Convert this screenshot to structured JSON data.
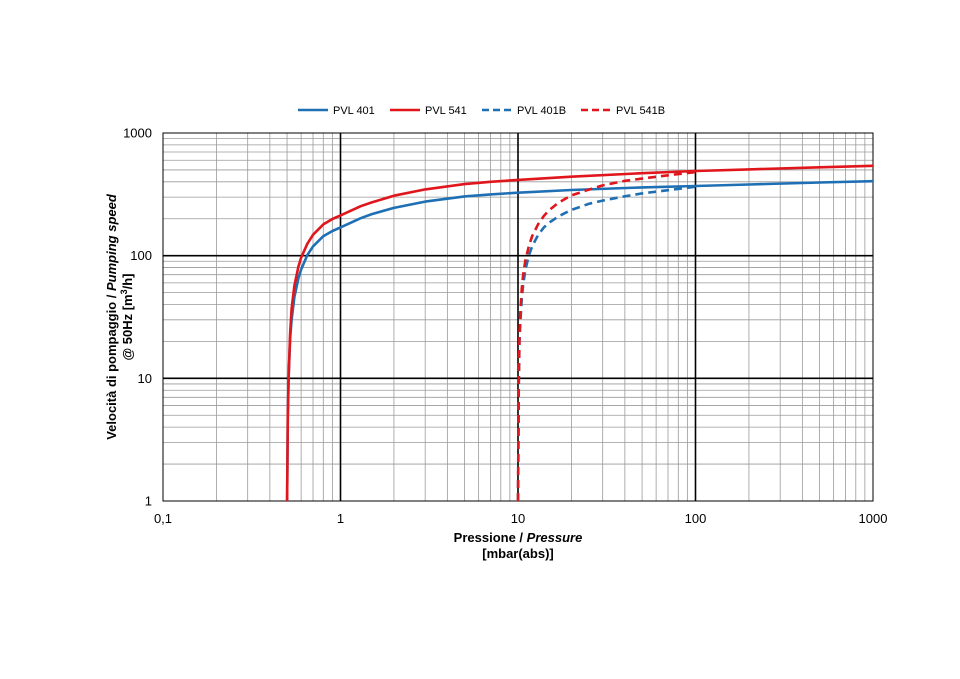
{
  "chart_data": {
    "type": "line",
    "x_scale": "log",
    "y_scale": "log",
    "xlim": [
      0.1,
      1000
    ],
    "ylim": [
      1,
      1000
    ],
    "grid": "on (major and minor)",
    "legend_position": "top",
    "x_ticks": [
      "0,1",
      "1",
      "10",
      "100",
      "1000"
    ],
    "y_ticks": [
      "1",
      "10",
      "100",
      "1000"
    ],
    "xlabel": {
      "line1_plain": "Pressione / ",
      "line1_italic": "Pressure",
      "line2": "[mbar(abs)]"
    },
    "ylabel": {
      "line1_plain": "Velocità di pompaggio / ",
      "line1_italic": "Pumping speed",
      "line2_prefix": "@ 50Hz [m",
      "line2_sup": "3",
      "line2_suffix": "/h]"
    },
    "series": [
      {
        "name": "PVL 401",
        "color": "#1f6fb4",
        "dash": "solid",
        "x": [
          0.5,
          0.505,
          0.51,
          0.52,
          0.53,
          0.55,
          0.58,
          0.6,
          0.65,
          0.7,
          0.8,
          0.9,
          1,
          1.3,
          1.5,
          2,
          3,
          5,
          7,
          10,
          20,
          50,
          100,
          200,
          500,
          1000
        ],
        "y": [
          1,
          5,
          10,
          21,
          30,
          46,
          66,
          77,
          101,
          119,
          144,
          159,
          170,
          202,
          218,
          245,
          276,
          304,
          316,
          326,
          343,
          360,
          370,
          380,
          395,
          405
        ]
      },
      {
        "name": "PVL 541",
        "color": "#e0161c",
        "dash": "solid",
        "x": [
          0.5,
          0.505,
          0.51,
          0.52,
          0.53,
          0.55,
          0.58,
          0.6,
          0.65,
          0.7,
          0.8,
          0.9,
          1,
          1.3,
          1.5,
          2,
          3,
          5,
          7,
          10,
          20,
          50,
          100,
          200,
          500,
          1000
        ],
        "y": [
          1,
          5,
          10,
          23,
          37,
          57,
          82,
          96,
          125,
          148,
          180,
          199,
          213,
          253,
          272,
          308,
          347,
          383,
          400,
          415,
          440,
          470,
          490,
          505,
          525,
          540
        ]
      },
      {
        "name": "PVL 401B",
        "color": "#1f6fb4",
        "dash": "dashed",
        "x": [
          10,
          10.1,
          10.2,
          10.3,
          10.5,
          10.7,
          11,
          11.5,
          12,
          13,
          14,
          15,
          17,
          20,
          25,
          30,
          40,
          50,
          70,
          100
        ],
        "y": [
          1,
          9,
          20,
          28,
          45,
          58,
          76,
          100,
          119,
          148,
          170,
          186,
          210,
          236,
          264,
          281,
          305,
          322,
          342,
          365
        ]
      },
      {
        "name": "PVL 541B",
        "color": "#e0161c",
        "dash": "dashed",
        "x": [
          10,
          10.1,
          10.2,
          10.3,
          10.5,
          10.7,
          11,
          11.5,
          12,
          13,
          14,
          15,
          17,
          20,
          25,
          30,
          40,
          50,
          70,
          100
        ],
        "y": [
          1,
          10,
          24,
          34,
          54,
          70,
          91,
          119,
          144,
          181,
          211,
          235,
          272,
          310,
          345,
          374,
          408,
          425,
          452,
          480
        ]
      }
    ]
  }
}
